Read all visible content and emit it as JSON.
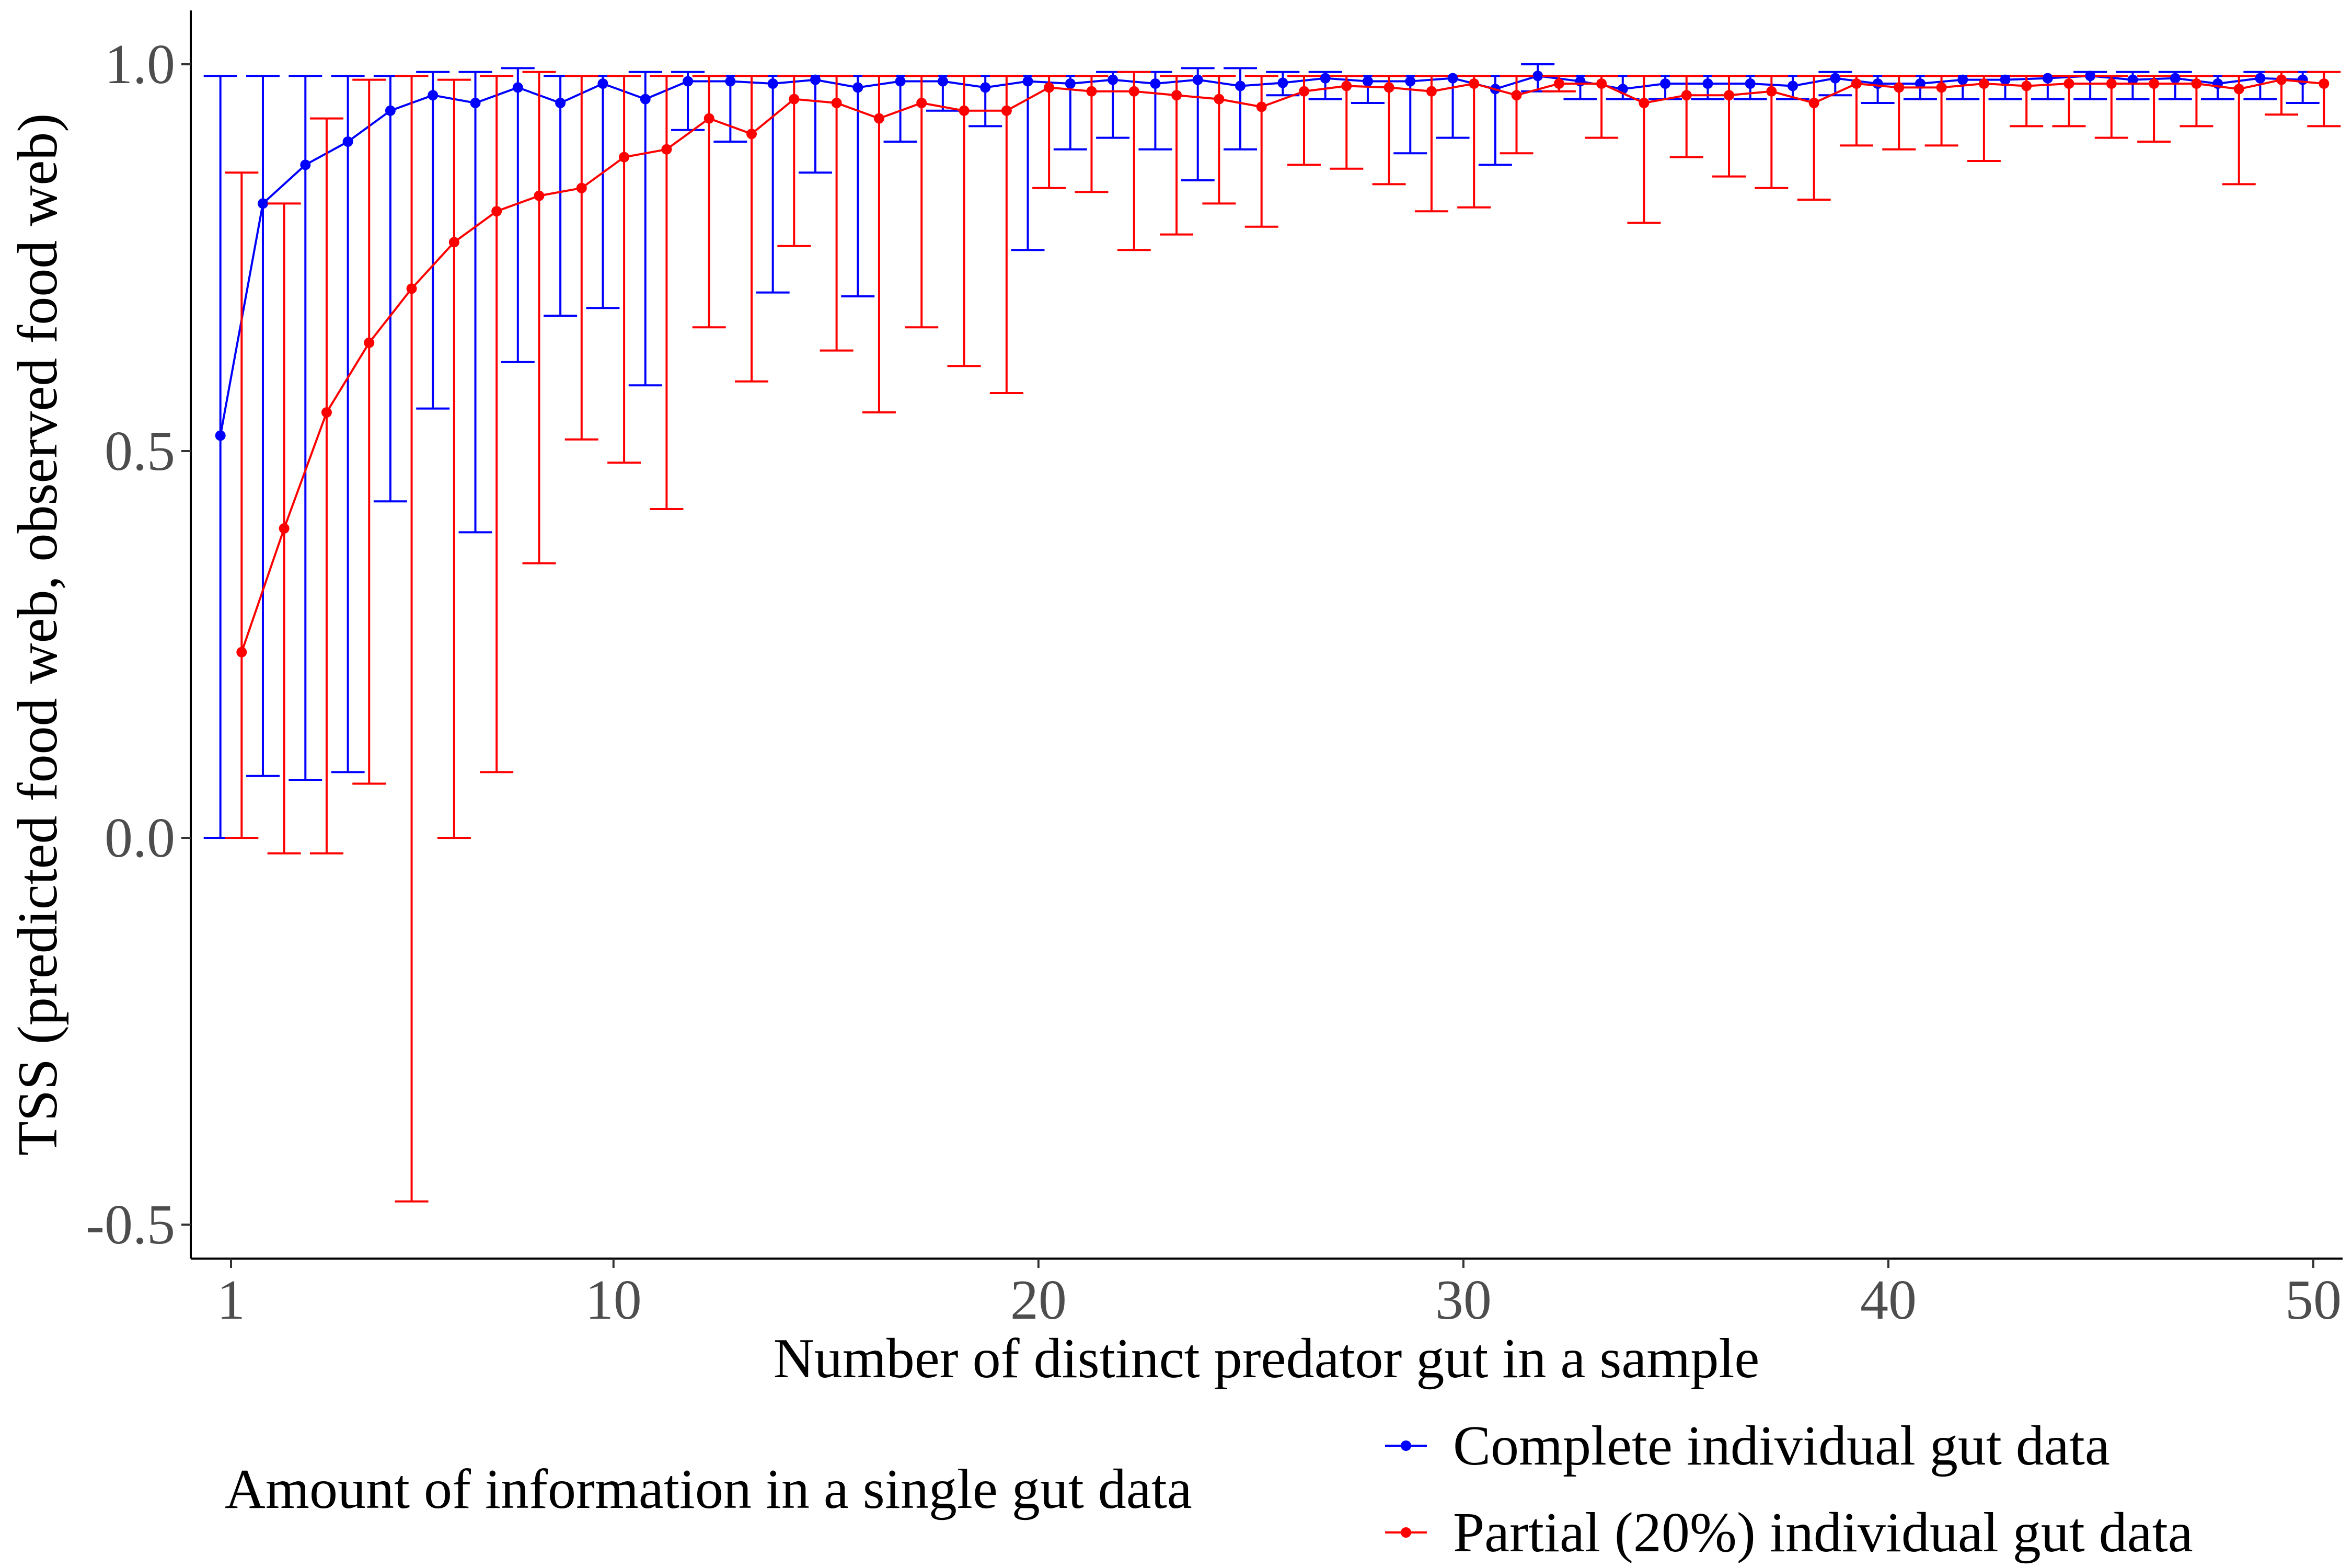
{
  "chart_data": {
    "type": "line",
    "title": "",
    "xlabel": "Number of distinct predator gut in a sample",
    "ylabel": "TSS (predicted food web, observed food web)",
    "xlim": [
      0,
      51
    ],
    "ylim": [
      -0.54,
      1.07
    ],
    "x_ticks": [
      1,
      10,
      20,
      30,
      40,
      50
    ],
    "x_tick_labels": [
      "1",
      "10",
      "20",
      "30",
      "40",
      "50"
    ],
    "y_ticks": [
      -0.5,
      0.0,
      0.5,
      1.0
    ],
    "y_tick_labels": [
      "-0.5",
      "0.0",
      "0.5",
      "1.0"
    ],
    "grid": false,
    "legend": {
      "title": "Amount of information in a single gut data",
      "position": "bottom"
    },
    "x": [
      1,
      2,
      3,
      4,
      5,
      6,
      7,
      8,
      9,
      10,
      11,
      12,
      13,
      14,
      15,
      16,
      17,
      18,
      19,
      20,
      21,
      22,
      23,
      24,
      25,
      26,
      27,
      28,
      29,
      30,
      31,
      32,
      33,
      34,
      35,
      36,
      37,
      38,
      39,
      40,
      41,
      42,
      43,
      44,
      45,
      46,
      47,
      48,
      49,
      50
    ],
    "series": [
      {
        "name": "Complete individual gut data",
        "color": "#0000ff",
        "x_offset": -0.25,
        "values": [
          0.52,
          0.82,
          0.87,
          0.9,
          0.94,
          0.96,
          0.95,
          0.97,
          0.95,
          0.975,
          0.955,
          0.978,
          0.978,
          0.975,
          0.98,
          0.97,
          0.978,
          0.978,
          0.97,
          0.978,
          0.975,
          0.98,
          0.975,
          0.98,
          0.972,
          0.976,
          0.982,
          0.978,
          0.978,
          0.982,
          0.968,
          0.985,
          0.978,
          0.968,
          0.975,
          0.975,
          0.975,
          0.972,
          0.982,
          0.975,
          0.975,
          0.98,
          0.98,
          0.982,
          0.985,
          0.98,
          0.982,
          0.975,
          0.982,
          0.98
        ],
        "lower": [
          0.0,
          0.08,
          0.075,
          0.085,
          0.435,
          0.555,
          0.395,
          0.615,
          0.675,
          0.685,
          0.585,
          0.915,
          0.9,
          0.705,
          0.86,
          0.7,
          0.9,
          0.94,
          0.92,
          0.76,
          0.89,
          0.905,
          0.89,
          0.85,
          0.89,
          0.96,
          0.955,
          0.95,
          0.885,
          0.905,
          0.87,
          0.965,
          0.955,
          0.955,
          0.955,
          0.955,
          0.955,
          0.955,
          0.96,
          0.95,
          0.955,
          0.955,
          0.955,
          0.955,
          0.955,
          0.955,
          0.955,
          0.955,
          0.955,
          0.95
        ],
        "upper": [
          0.985,
          0.985,
          0.985,
          0.985,
          0.985,
          0.99,
          0.99,
          0.995,
          0.985,
          0.985,
          0.99,
          0.99,
          0.985,
          0.985,
          0.985,
          0.985,
          0.985,
          0.985,
          0.985,
          0.985,
          0.985,
          0.99,
          0.99,
          0.995,
          0.995,
          0.99,
          0.99,
          0.985,
          0.985,
          0.985,
          0.985,
          1.0,
          0.985,
          0.985,
          0.985,
          0.985,
          0.985,
          0.985,
          0.99,
          0.985,
          0.985,
          0.985,
          0.985,
          0.985,
          0.99,
          0.99,
          0.99,
          0.985,
          0.99,
          0.99
        ]
      },
      {
        "name": "Partial (20%) individual gut data",
        "color": "#ff0000",
        "x_offset": 0.25,
        "values": [
          0.24,
          0.4,
          0.55,
          0.64,
          0.71,
          0.77,
          0.81,
          0.83,
          0.84,
          0.88,
          0.89,
          0.93,
          0.91,
          0.955,
          0.95,
          0.93,
          0.95,
          0.94,
          0.94,
          0.97,
          0.965,
          0.965,
          0.96,
          0.955,
          0.945,
          0.965,
          0.972,
          0.97,
          0.965,
          0.975,
          0.96,
          0.975,
          0.975,
          0.95,
          0.96,
          0.96,
          0.965,
          0.95,
          0.975,
          0.97,
          0.97,
          0.975,
          0.972,
          0.975,
          0.975,
          0.975,
          0.975,
          0.968,
          0.98,
          0.975
        ],
        "lower": [
          0.0,
          -0.02,
          -0.02,
          0.07,
          -0.47,
          0.0,
          0.085,
          0.355,
          0.515,
          0.485,
          0.425,
          0.66,
          0.59,
          0.765,
          0.63,
          0.55,
          0.66,
          0.61,
          0.575,
          0.84,
          0.835,
          0.76,
          0.78,
          0.82,
          0.79,
          0.87,
          0.865,
          0.845,
          0.81,
          0.815,
          0.885,
          0.965,
          0.905,
          0.795,
          0.88,
          0.855,
          0.84,
          0.825,
          0.895,
          0.89,
          0.895,
          0.875,
          0.92,
          0.92,
          0.905,
          0.9,
          0.92,
          0.845,
          0.935,
          0.92
        ],
        "upper": [
          0.86,
          0.82,
          0.93,
          0.98,
          0.985,
          0.98,
          0.985,
          0.99,
          0.985,
          0.985,
          0.985,
          0.985,
          0.985,
          0.985,
          0.985,
          0.985,
          0.985,
          0.985,
          0.985,
          0.985,
          0.985,
          0.99,
          0.985,
          0.985,
          0.985,
          0.985,
          0.985,
          0.985,
          0.985,
          0.985,
          0.985,
          0.985,
          0.985,
          0.985,
          0.985,
          0.985,
          0.985,
          0.985,
          0.985,
          0.985,
          0.985,
          0.985,
          0.985,
          0.985,
          0.985,
          0.985,
          0.985,
          0.985,
          0.99,
          0.99
        ]
      }
    ]
  }
}
